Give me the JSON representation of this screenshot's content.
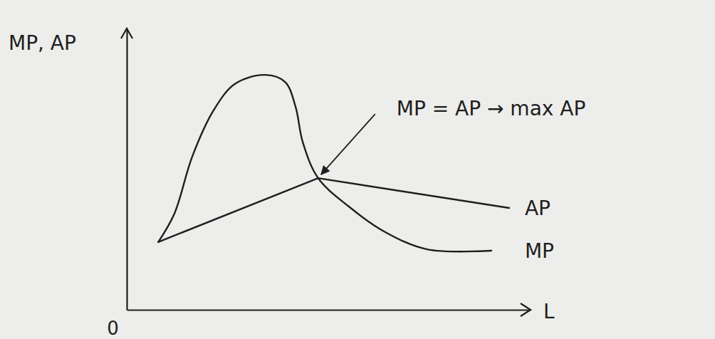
{
  "chart_data": {
    "type": "line",
    "x_label": "L",
    "y_label": "MP, AP",
    "xlim": [
      0,
      10
    ],
    "ylim": [
      0,
      10
    ],
    "xticks": [
      0
    ],
    "yticks": [],
    "tick_labels": "x",
    "grid": false,
    "series": [
      {
        "name": "AP",
        "color": "#1e1e1e",
        "x": [
          0.78,
          4.74,
          9.47
        ],
        "values": [
          2.41,
          4.68,
          3.62
        ]
      },
      {
        "name": "MP",
        "color": "#1e1e1e",
        "x": [
          0.78,
          1.18,
          1.62,
          2.15,
          2.68,
          3.42,
          3.92,
          4.18,
          4.36,
          4.74,
          5.5,
          6.38,
          7.44,
          9.03
        ],
        "values": [
          2.41,
          3.42,
          5.44,
          7.09,
          8.03,
          8.35,
          8.1,
          7.22,
          5.95,
          4.68,
          3.67,
          2.78,
          2.15,
          2.1
        ]
      }
    ],
    "annotations": [
      {
        "text": "MP = AP → max AP",
        "x": 4.74,
        "y": 4.68
      }
    ]
  }
}
